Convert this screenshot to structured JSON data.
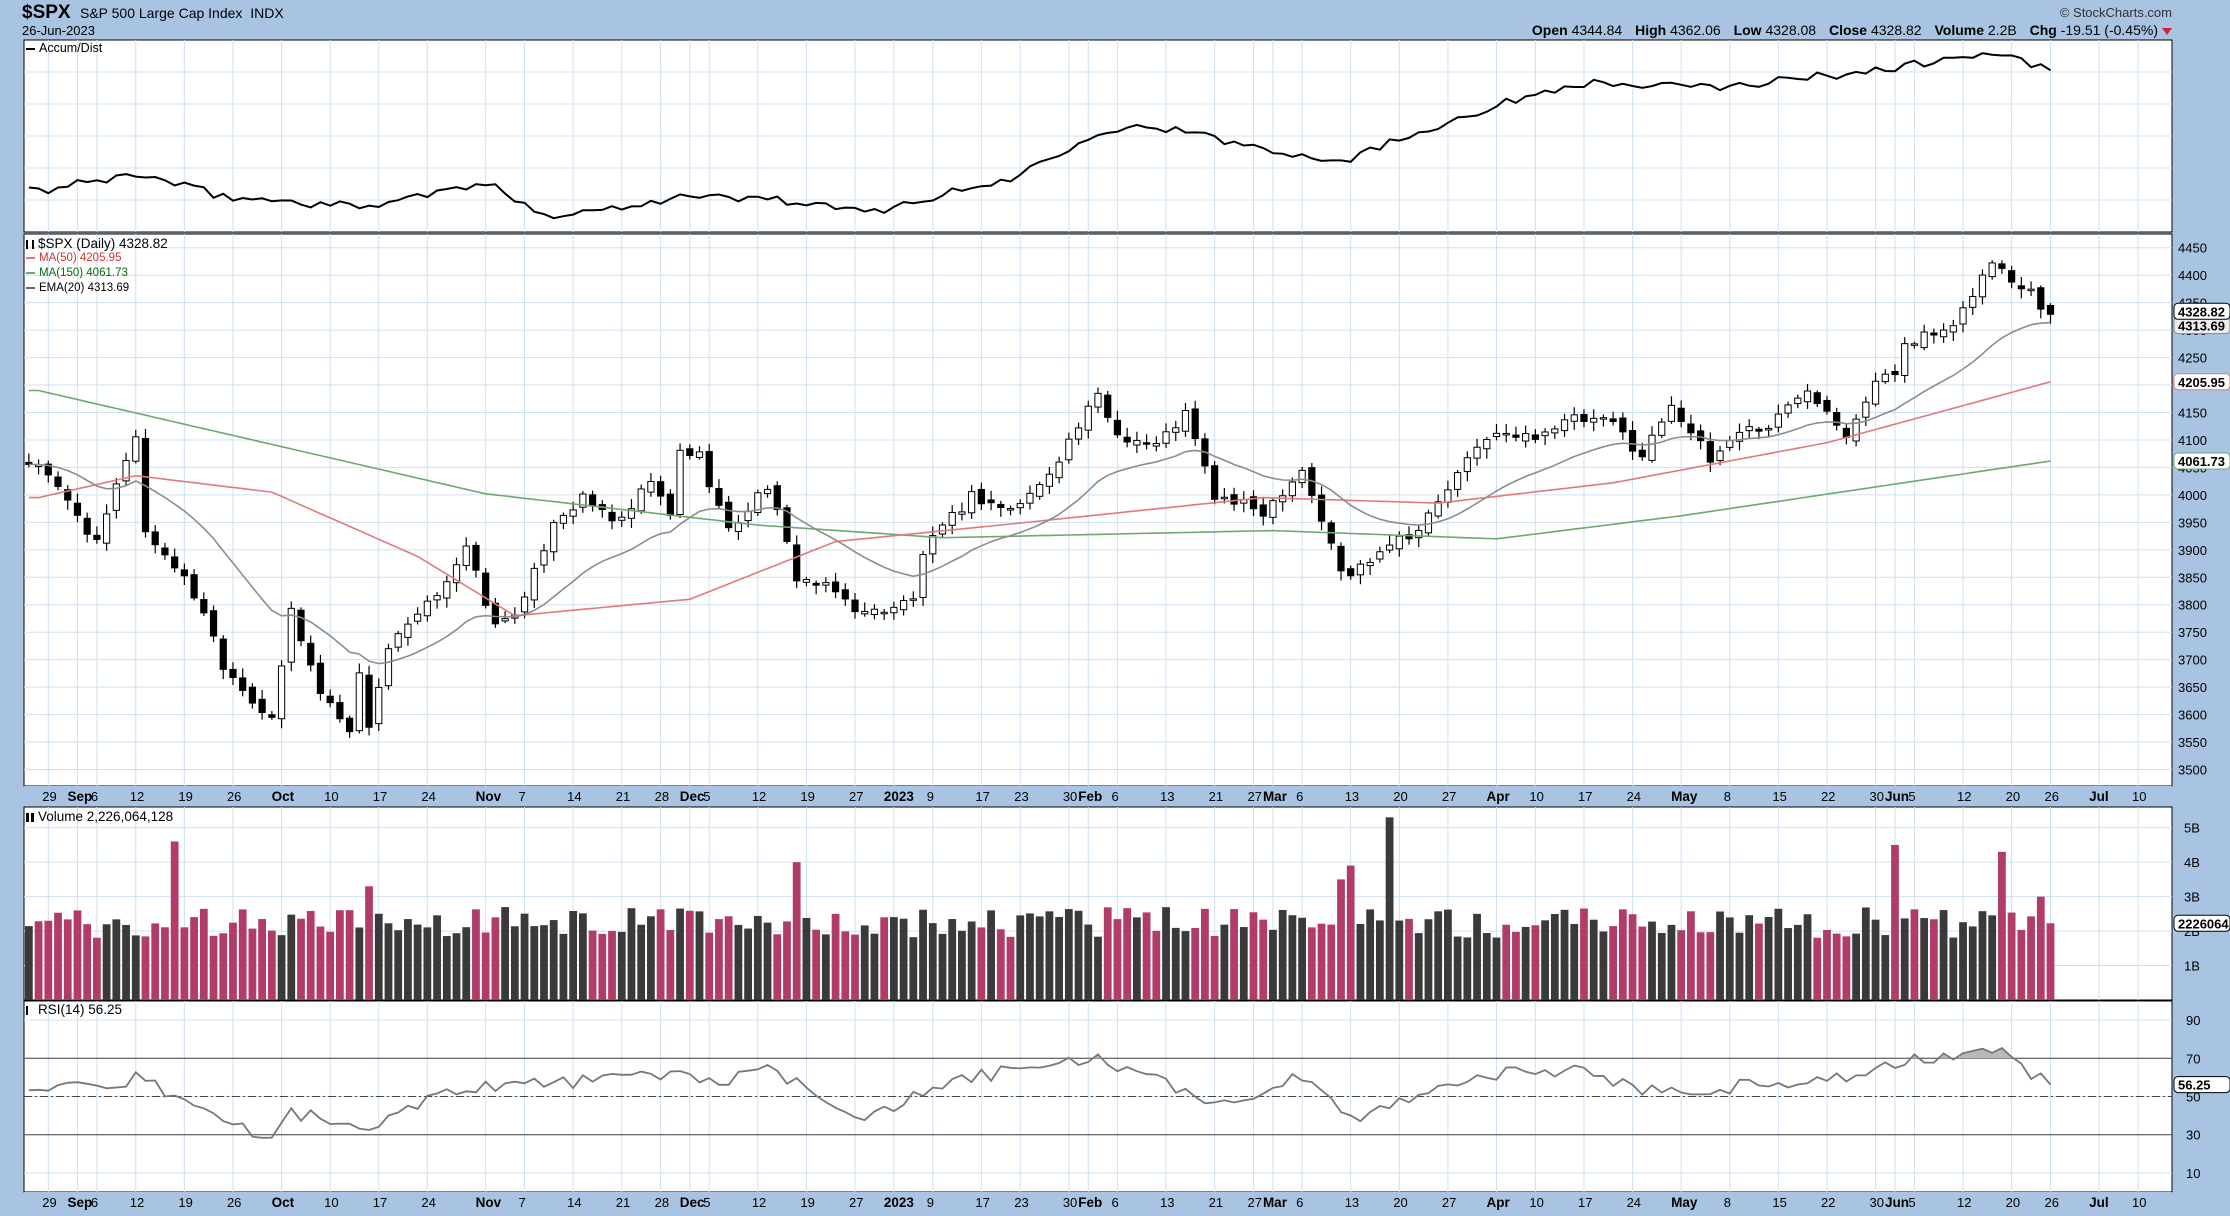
{
  "header": {
    "symbol": "$SPX",
    "name": "S&P 500 Large Cap Index",
    "exchange": "INDX",
    "date": "26-Jun-2023",
    "brand": "© StockCharts.com",
    "open_label": "Open",
    "open": "4344.84",
    "high_label": "High",
    "high": "4362.06",
    "low_label": "Low",
    "low": "4328.08",
    "close_label": "Close",
    "close": "4328.82",
    "volume_label": "Volume",
    "volume": "2.2B",
    "chg_label": "Chg",
    "chg": "-19.51 (-0.45%)"
  },
  "legends": {
    "accum": "Accum/Dist",
    "price": "$SPX (Daily) 4328.82",
    "ma50": "MA(50) 4205.95",
    "ma150": "MA(150) 4061.73",
    "ema20": "EMA(20) 4313.69",
    "volume": "Volume 2,226,064,128",
    "rsi": "RSI(14) 56.25"
  },
  "colors": {
    "background": "#a9c4e2",
    "panel": "#ffffff",
    "grid": "#cfe0f2",
    "up_volume": "#3a3a3a",
    "down_volume": "#b13c6a",
    "ma50": "#e07a7a",
    "ma150": "#6fa86f",
    "ema20": "#8c8c8c",
    "line": "#000000"
  },
  "chart_data": {
    "type": "candlestick",
    "date_axis": {
      "month_ticks": [
        {
          "label": "Sep",
          "date": "2022-09-01"
        },
        {
          "label": "Oct",
          "date": "2022-10-03"
        },
        {
          "label": "Nov",
          "date": "2022-11-01"
        },
        {
          "label": "Dec",
          "date": "2022-12-01"
        },
        {
          "label": "2023",
          "date": "2023-01-03"
        },
        {
          "label": "Feb",
          "date": "2023-02-01"
        },
        {
          "label": "Mar",
          "date": "2023-03-01"
        },
        {
          "label": "Apr",
          "date": "2023-04-03"
        },
        {
          "label": "May",
          "date": "2023-05-01"
        },
        {
          "label": "Jun",
          "date": "2023-06-01"
        },
        {
          "label": "Jul",
          "date": "2023-07-03"
        }
      ],
      "day_ticks": [
        {
          "label": "29",
          "date": "2022-08-29"
        },
        {
          "label": "6",
          "date": "2022-09-06"
        },
        {
          "label": "12",
          "date": "2022-09-12"
        },
        {
          "label": "19",
          "date": "2022-09-19"
        },
        {
          "label": "26",
          "date": "2022-09-26"
        },
        {
          "label": "10",
          "date": "2022-10-10"
        },
        {
          "label": "17",
          "date": "2022-10-17"
        },
        {
          "label": "24",
          "date": "2022-10-24"
        },
        {
          "label": "7",
          "date": "2022-11-07"
        },
        {
          "label": "14",
          "date": "2022-11-14"
        },
        {
          "label": "21",
          "date": "2022-11-21"
        },
        {
          "label": "28",
          "date": "2022-11-28"
        },
        {
          "label": "5",
          "date": "2022-12-05"
        },
        {
          "label": "12",
          "date": "2022-12-12"
        },
        {
          "label": "19",
          "date": "2022-12-19"
        },
        {
          "label": "27",
          "date": "2022-12-27"
        },
        {
          "label": "9",
          "date": "2023-01-09"
        },
        {
          "label": "17",
          "date": "2023-01-17"
        },
        {
          "label": "23",
          "date": "2023-01-23"
        },
        {
          "label": "30",
          "date": "2023-01-30"
        },
        {
          "label": "6",
          "date": "2023-02-06"
        },
        {
          "label": "13",
          "date": "2023-02-13"
        },
        {
          "label": "21",
          "date": "2023-02-21"
        },
        {
          "label": "27",
          "date": "2023-02-27"
        },
        {
          "label": "6",
          "date": "2023-03-06"
        },
        {
          "label": "13",
          "date": "2023-03-13"
        },
        {
          "label": "20",
          "date": "2023-03-20"
        },
        {
          "label": "27",
          "date": "2023-03-27"
        },
        {
          "label": "10",
          "date": "2023-04-10"
        },
        {
          "label": "17",
          "date": "2023-04-17"
        },
        {
          "label": "24",
          "date": "2023-04-24"
        },
        {
          "label": "8",
          "date": "2023-05-08"
        },
        {
          "label": "15",
          "date": "2023-05-15"
        },
        {
          "label": "22",
          "date": "2023-05-22"
        },
        {
          "label": "30",
          "date": "2023-05-30"
        },
        {
          "label": "5",
          "date": "2023-06-05"
        },
        {
          "label": "12",
          "date": "2023-06-12"
        },
        {
          "label": "20",
          "date": "2023-06-20"
        },
        {
          "label": "26",
          "date": "2023-06-26"
        },
        {
          "label": "10",
          "date": "2023-07-10"
        }
      ],
      "end_date": "2023-07-13"
    },
    "price": {
      "ylim": [
        3470,
        4475
      ],
      "ticks": [
        3500,
        3550,
        3600,
        3650,
        3700,
        3750,
        3800,
        3850,
        3900,
        3950,
        4000,
        4050,
        4100,
        4150,
        4200,
        4250,
        4300,
        4350,
        4400,
        4450
      ],
      "last_label": "4328.82",
      "ema20_label": "4313.69",
      "ma50_label": "4205.95",
      "ma150_label": "4061.73",
      "anchors": [
        [
          "2022-08-26",
          4058
        ],
        [
          "2022-08-29",
          4030
        ],
        [
          "2022-09-01",
          3966
        ],
        [
          "2022-09-06",
          3908
        ],
        [
          "2022-09-09",
          4067
        ],
        [
          "2022-09-12",
          4110
        ],
        [
          "2022-09-13",
          3932
        ],
        [
          "2022-09-16",
          3873
        ],
        [
          "2022-09-21",
          3790
        ],
        [
          "2022-09-23",
          3693
        ],
        [
          "2022-09-30",
          3585
        ],
        [
          "2022-10-04",
          3790
        ],
        [
          "2022-10-07",
          3640
        ],
        [
          "2022-10-12",
          3577
        ],
        [
          "2022-10-13",
          3669
        ],
        [
          "2022-10-14",
          3583
        ],
        [
          "2022-10-18",
          3720
        ],
        [
          "2022-10-24",
          3797
        ],
        [
          "2022-10-28",
          3901
        ],
        [
          "2022-11-02",
          3759
        ],
        [
          "2022-11-07",
          3806
        ],
        [
          "2022-11-10",
          3956
        ],
        [
          "2022-11-15",
          3991
        ],
        [
          "2022-11-21",
          3949
        ],
        [
          "2022-11-25",
          4026
        ],
        [
          "2022-11-29",
          3958
        ],
        [
          "2022-11-30",
          4080
        ],
        [
          "2022-12-02",
          4072
        ],
        [
          "2022-12-07",
          3933
        ],
        [
          "2022-12-13",
          4019
        ],
        [
          "2022-12-16",
          3852
        ],
        [
          "2022-12-22",
          3822
        ],
        [
          "2022-12-28",
          3783
        ],
        [
          "2023-01-05",
          3808
        ],
        [
          "2023-01-06",
          3895
        ],
        [
          "2023-01-13",
          3999
        ],
        [
          "2023-01-20",
          3972
        ],
        [
          "2023-01-25",
          4016
        ],
        [
          "2023-02-02",
          4179
        ],
        [
          "2023-02-06",
          4111
        ],
        [
          "2023-02-10",
          4090
        ],
        [
          "2023-02-15",
          4148
        ],
        [
          "2023-02-21",
          3997
        ],
        [
          "2023-02-28",
          3970
        ],
        [
          "2023-03-06",
          4048
        ],
        [
          "2023-03-10",
          3861
        ],
        [
          "2023-03-13",
          3855
        ],
        [
          "2023-03-17",
          3917
        ],
        [
          "2023-03-22",
          3937
        ],
        [
          "2023-03-31",
          4109
        ],
        [
          "2023-04-06",
          4105
        ],
        [
          "2023-04-14",
          4137
        ],
        [
          "2023-04-20",
          4130
        ],
        [
          "2023-04-25",
          4071
        ],
        [
          "2023-04-28",
          4169
        ],
        [
          "2023-05-04",
          4061
        ],
        [
          "2023-05-09",
          4119
        ],
        [
          "2023-05-12",
          4124
        ],
        [
          "2023-05-18",
          4198
        ],
        [
          "2023-05-24",
          4115
        ],
        [
          "2023-05-30",
          4205
        ],
        [
          "2023-06-01",
          4221
        ],
        [
          "2023-06-02",
          4282
        ],
        [
          "2023-06-09",
          4298
        ],
        [
          "2023-06-13",
          4369
        ],
        [
          "2023-06-15",
          4425
        ],
        [
          "2023-06-16",
          4409
        ],
        [
          "2023-06-20",
          4388
        ],
        [
          "2023-06-22",
          4381
        ],
        [
          "2023-06-23",
          4348
        ],
        [
          "2023-06-26",
          4328.82
        ]
      ],
      "ma150_anchors": [
        [
          "2022-08-26",
          4190
        ],
        [
          "2022-11-01",
          4002
        ],
        [
          "2022-12-10",
          3945
        ],
        [
          "2023-01-10",
          3922
        ],
        [
          "2023-03-01",
          3935
        ],
        [
          "2023-04-01",
          3920
        ],
        [
          "2023-05-01",
          3962
        ],
        [
          "2023-06-26",
          4061.73
        ]
      ],
      "ma50_anchors": [
        [
          "2022-08-26",
          3995
        ],
        [
          "2022-09-12",
          4035
        ],
        [
          "2022-09-30",
          4005
        ],
        [
          "2022-10-21",
          3888
        ],
        [
          "2022-11-04",
          3780
        ],
        [
          "2022-12-01",
          3810
        ],
        [
          "2022-12-22",
          3915
        ],
        [
          "2023-01-20",
          3947
        ],
        [
          "2023-02-28",
          3995
        ],
        [
          "2023-03-24",
          3985
        ],
        [
          "2023-04-20",
          4022
        ],
        [
          "2023-05-20",
          4095
        ],
        [
          "2023-06-26",
          4205.95
        ]
      ]
    },
    "accum_dist": {
      "anchors": [
        [
          "2022-08-26",
          -8
        ],
        [
          "2022-09-12",
          6
        ],
        [
          "2022-09-23",
          -12
        ],
        [
          "2022-10-13",
          -20
        ],
        [
          "2022-11-01",
          -2
        ],
        [
          "2022-11-10",
          -28
        ],
        [
          "2022-11-30",
          -12
        ],
        [
          "2022-12-14",
          -14
        ],
        [
          "2022-12-28",
          -25
        ],
        [
          "2023-01-20",
          2
        ],
        [
          "2023-02-02",
          40
        ],
        [
          "2023-02-10",
          44
        ],
        [
          "2023-02-22",
          32
        ],
        [
          "2023-03-10",
          16
        ],
        [
          "2023-03-24",
          45
        ],
        [
          "2023-04-03",
          60
        ],
        [
          "2023-04-14",
          78
        ],
        [
          "2023-05-04",
          74
        ],
        [
          "2023-05-30",
          88
        ],
        [
          "2023-06-15",
          102
        ],
        [
          "2023-06-26",
          88
        ]
      ]
    },
    "volume": {
      "ylim": [
        0,
        5.6
      ],
      "unit": "B",
      "ticks": [
        {
          "v": 1,
          "label": "1B"
        },
        {
          "v": 2,
          "label": "2B"
        },
        {
          "v": 3,
          "label": "3B"
        },
        {
          "v": 4,
          "label": "4B"
        },
        {
          "v": 5,
          "label": "5B"
        }
      ],
      "last_label": "2226064",
      "base": 2.25,
      "spikes": [
        [
          "2022-09-16",
          4.6
        ],
        [
          "2022-10-14",
          3.3
        ],
        [
          "2022-12-16",
          4.0
        ],
        [
          "2022-12-16",
          4.0
        ],
        [
          "2023-03-10",
          3.5
        ],
        [
          "2023-03-13",
          3.9
        ],
        [
          "2023-03-17",
          5.3
        ],
        [
          "2023-06-01",
          4.5
        ],
        [
          "2023-06-16",
          4.3
        ],
        [
          "2023-06-23",
          3.0
        ]
      ],
      "last_value": 2.226
    },
    "rsi": {
      "ylim": [
        0,
        100
      ],
      "ticks": [
        10,
        30,
        50,
        70,
        90
      ],
      "ref_lines": [
        30,
        50,
        70
      ],
      "last_label": "56.25",
      "anchors": [
        [
          "2022-08-26",
          56
        ],
        [
          "2022-09-09",
          52
        ],
        [
          "2022-09-12",
          60
        ],
        [
          "2022-09-23",
          38
        ],
        [
          "2022-09-30",
          27
        ],
        [
          "2022-10-04",
          42
        ],
        [
          "2022-10-14",
          32
        ],
        [
          "2022-10-24",
          50
        ],
        [
          "2022-11-01",
          56
        ],
        [
          "2022-11-10",
          57
        ],
        [
          "2022-11-30",
          62
        ],
        [
          "2022-12-07",
          58
        ],
        [
          "2022-12-13",
          64
        ],
        [
          "2022-12-22",
          46
        ],
        [
          "2022-12-28",
          40
        ],
        [
          "2023-01-13",
          60
        ],
        [
          "2023-02-02",
          70
        ],
        [
          "2023-02-10",
          58
        ],
        [
          "2023-02-22",
          46
        ],
        [
          "2023-03-06",
          60
        ],
        [
          "2023-03-13",
          38
        ],
        [
          "2023-03-22",
          52
        ],
        [
          "2023-04-03",
          62
        ],
        [
          "2023-04-14",
          64
        ],
        [
          "2023-04-25",
          54
        ],
        [
          "2023-05-04",
          54
        ],
        [
          "2023-05-30",
          62
        ],
        [
          "2023-06-01",
          67
        ],
        [
          "2023-06-15",
          75
        ],
        [
          "2023-06-20",
          69
        ],
        [
          "2023-06-26",
          56.25
        ]
      ]
    }
  }
}
